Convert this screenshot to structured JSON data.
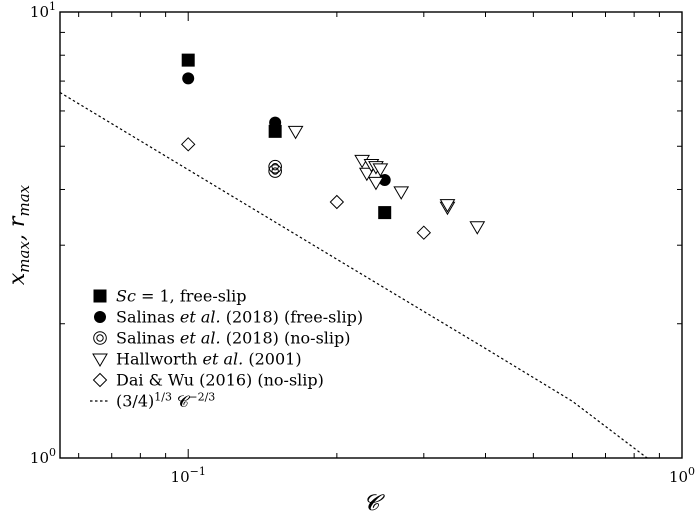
{
  "chart_data": {
    "type": "scatter",
    "xscale": "log",
    "yscale": "log",
    "xlim": [
      0.055,
      1.0
    ],
    "ylim": [
      1.0,
      10.0
    ],
    "xlabel": "𝓒",
    "ylabel": "x_max, r_max",
    "x_tick_labels": [
      {
        "value": 0.1,
        "mantissa": "10",
        "exponent": "−1"
      },
      {
        "value": 1.0,
        "mantissa": "10",
        "exponent": "0"
      }
    ],
    "y_tick_labels": [
      {
        "value": 1.0,
        "mantissa": "10",
        "exponent": "0"
      },
      {
        "value": 10.0,
        "mantissa": "10",
        "exponent": "1"
      }
    ],
    "grid": false,
    "legend_position": "lower-left",
    "series": [
      {
        "key": "sc1",
        "marker": "filled-square",
        "legend_parts": [
          {
            "t": "Sc",
            "italic": true
          },
          {
            "t": " = 1, free-slip"
          }
        ],
        "points": [
          [
            0.1,
            7.8
          ],
          [
            0.15,
            5.4
          ],
          [
            0.25,
            3.55
          ]
        ]
      },
      {
        "key": "salinas-free",
        "marker": "filled-circle",
        "legend_parts": [
          {
            "t": "Salinas "
          },
          {
            "t": "et al.",
            "italic": true
          },
          {
            "t": " (2018) (free-slip)"
          }
        ],
        "points": [
          [
            0.1,
            7.1
          ],
          [
            0.15,
            5.65
          ],
          [
            0.25,
            4.2
          ]
        ]
      },
      {
        "key": "salinas-no",
        "marker": "double-circle",
        "legend_parts": [
          {
            "t": "Salinas "
          },
          {
            "t": "et al.",
            "italic": true
          },
          {
            "t": " (2018) (no-slip)"
          }
        ],
        "points": [
          [
            0.15,
            4.5
          ],
          [
            0.15,
            4.4
          ]
        ]
      },
      {
        "key": "hallworth",
        "marker": "down-triangle",
        "legend_parts": [
          {
            "t": "Hallworth "
          },
          {
            "t": "et al.",
            "italic": true
          },
          {
            "t": " (2001)"
          }
        ],
        "points": [
          [
            0.165,
            5.4
          ],
          [
            0.225,
            4.65
          ],
          [
            0.23,
            4.35
          ],
          [
            0.235,
            4.55
          ],
          [
            0.24,
            4.5
          ],
          [
            0.245,
            4.45
          ],
          [
            0.24,
            4.15
          ],
          [
            0.27,
            3.95
          ],
          [
            0.335,
            3.65
          ],
          [
            0.335,
            3.7
          ],
          [
            0.385,
            3.3
          ]
        ]
      },
      {
        "key": "dai-wu",
        "marker": "open-diamond",
        "legend_parts": [
          {
            "t": "Dai & Wu (2016) (no-slip)"
          }
        ],
        "points": [
          [
            0.1,
            5.05
          ],
          [
            0.2,
            3.75
          ],
          [
            0.3,
            3.2
          ]
        ]
      },
      {
        "key": "scaling",
        "marker": "dotted-line",
        "legend_parts": [
          {
            "t": "(3/4)"
          },
          {
            "t": "1/3",
            "sup": true
          },
          {
            "t": " 𝓒"
          },
          {
            "t": "−2/3",
            "sup": true
          }
        ],
        "points": [
          [
            0.055,
            6.6
          ],
          [
            0.1,
            4.43
          ],
          [
            0.2,
            2.79
          ],
          [
            0.4,
            1.76
          ],
          [
            0.6,
            1.34
          ],
          [
            0.85,
            1.0
          ]
        ]
      }
    ]
  }
}
